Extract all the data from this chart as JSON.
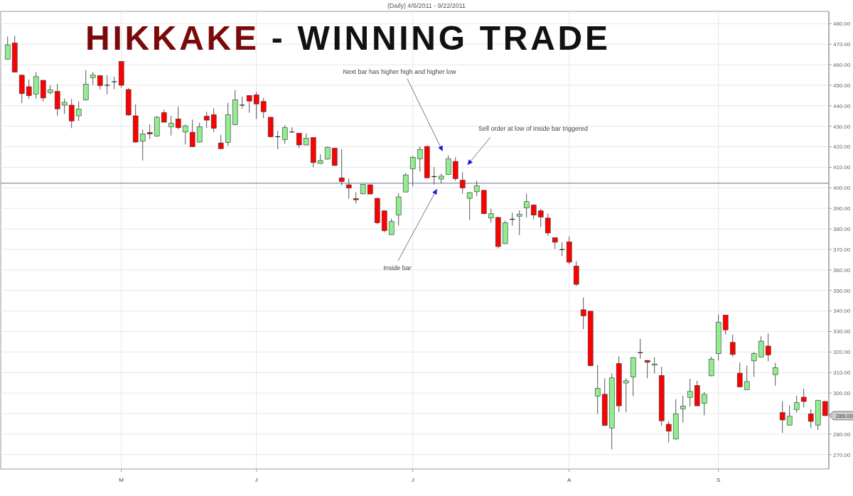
{
  "chart_data": {
    "type": "candlestick",
    "title": "HIKKAKE - WINNING TRADE",
    "subtitle": "(Daily) 4/6/2011 - 9/22/2011",
    "categories": [
      null,
      null,
      null,
      null,
      null,
      null,
      null,
      null,
      null,
      null,
      null,
      null,
      null,
      null,
      null,
      null,
      "M",
      null,
      null,
      null,
      null,
      null,
      null,
      null,
      null,
      null,
      null,
      null,
      null,
      null,
      null,
      null,
      null,
      null,
      null,
      "J",
      null,
      null,
      null,
      null,
      null,
      null,
      null,
      null,
      null,
      null,
      null,
      null,
      null,
      null,
      null,
      null,
      null,
      null,
      null,
      null,
      null,
      "J",
      null,
      null,
      null,
      null,
      null,
      null,
      null,
      null,
      null,
      null,
      null,
      null,
      null,
      null,
      null,
      null,
      null,
      null,
      null,
      null,
      null,
      "A",
      null,
      null,
      null,
      null,
      null,
      null,
      null,
      null,
      null,
      null,
      null,
      null,
      null,
      null,
      null,
      null,
      null,
      null,
      null,
      null,
      "S",
      null,
      null,
      null,
      null,
      null,
      null,
      null,
      null,
      null,
      null,
      null,
      null,
      null,
      null,
      null
    ],
    "ohlc": [
      [
        462.7,
        473.7,
        462.5,
        469.7
      ],
      [
        470.6,
        474.1,
        456.2,
        456.4
      ],
      [
        454.9,
        455.2,
        441.3,
        445.9
      ],
      [
        449.3,
        452.8,
        443.3,
        444.9
      ],
      [
        445.6,
        456.4,
        443.3,
        454.2
      ],
      [
        452.4,
        452.6,
        442.1,
        443.8
      ],
      [
        446.4,
        450.0,
        445.6,
        447.7
      ],
      [
        447.0,
        450.7,
        435.1,
        438.5
      ],
      [
        440.3,
        443.5,
        436.0,
        441.7
      ],
      [
        440.3,
        443.3,
        429.1,
        432.6
      ],
      [
        435.1,
        442.1,
        432.6,
        438.4
      ],
      [
        442.8,
        457.4,
        442.6,
        450.5
      ],
      [
        453.7,
        456.5,
        450.2,
        455.0
      ],
      [
        454.7,
        454.9,
        447.9,
        449.8
      ],
      [
        450.0,
        454.9,
        445.6,
        450.0
      ],
      [
        451.7,
        454.2,
        448.1,
        451.7
      ],
      [
        461.6,
        461.8,
        448.8,
        450.0
      ],
      [
        447.9,
        448.7,
        435.1,
        435.5
      ],
      [
        435.1,
        440.7,
        422.0,
        422.3
      ],
      [
        422.7,
        428.4,
        413.3,
        426.3
      ],
      [
        427.0,
        430.9,
        423.7,
        426.3
      ],
      [
        425.3,
        435.1,
        424.9,
        434.4
      ],
      [
        436.7,
        438.1,
        431.8,
        432.0
      ],
      [
        429.8,
        435.1,
        425.5,
        431.4
      ],
      [
        433.6,
        439.5,
        428.4,
        429.3
      ],
      [
        427.2,
        430.9,
        421.2,
        430.2
      ],
      [
        427.1,
        433.3,
        419.9,
        420.1
      ],
      [
        422.3,
        431.7,
        422.1,
        429.7
      ],
      [
        434.9,
        437.1,
        429.2,
        433.0
      ],
      [
        435.7,
        438.8,
        427.2,
        429.0
      ],
      [
        421.9,
        425.8,
        418.9,
        419.1
      ],
      [
        422.1,
        441.4,
        420.5,
        435.6
      ],
      [
        430.8,
        447.7,
        430.6,
        442.9
      ],
      [
        440.3,
        444.4,
        438.6,
        440.3
      ],
      [
        445.0,
        445.2,
        436.6,
        442.3
      ],
      [
        445.3,
        446.7,
        433.6,
        440.9
      ],
      [
        442.1,
        443.8,
        434.0,
        437.1
      ],
      [
        434.4,
        434.6,
        424.7,
        424.9
      ],
      [
        424.9,
        427.8,
        418.8,
        424.9
      ],
      [
        423.5,
        430.5,
        421.4,
        429.3
      ],
      [
        427.2,
        429.5,
        427.0,
        427.2
      ],
      [
        426.6,
        426.8,
        419.4,
        420.9
      ],
      [
        420.9,
        426.6,
        420.7,
        424.2
      ],
      [
        424.5,
        424.7,
        410.1,
        412.3
      ],
      [
        411.9,
        416.3,
        411.7,
        413.3
      ],
      [
        414.0,
        420.2,
        413.8,
        419.8
      ],
      [
        419.3,
        419.5,
        410.7,
        410.9
      ],
      [
        404.9,
        418.8,
        401.2,
        403.1
      ],
      [
        401.5,
        404.5,
        394.7,
        399.9
      ],
      [
        394.8,
        397.9,
        392.3,
        394.2
      ],
      [
        397.1,
        401.9,
        396.9,
        401.7
      ],
      [
        401.5,
        401.7,
        396.8,
        397.0
      ],
      [
        394.9,
        395.1,
        382.3,
        383.0
      ],
      [
        388.8,
        389.0,
        378.4,
        379.1
      ],
      [
        377.2,
        385.0,
        377.0,
        383.6
      ],
      [
        386.8,
        397.4,
        381.6,
        395.6
      ],
      [
        398.0,
        407.2,
        397.8,
        406.3
      ],
      [
        409.3,
        415.6,
        400.8,
        414.9
      ],
      [
        414.1,
        420.2,
        408.0,
        418.7
      ],
      [
        420.2,
        420.4,
        404.7,
        404.9
      ],
      [
        405.5,
        410.1,
        401.6,
        405.5
      ],
      [
        404.3,
        406.9,
        402.2,
        405.7
      ],
      [
        406.5,
        415.8,
        406.3,
        414.1
      ],
      [
        412.9,
        414.9,
        403.4,
        404.5
      ],
      [
        403.7,
        407.7,
        397.2,
        400.0
      ],
      [
        394.9,
        397.9,
        384.4,
        397.7
      ],
      [
        398.1,
        403.4,
        396.0,
        401.0
      ],
      [
        398.8,
        399.0,
        387.2,
        387.4
      ],
      [
        385.3,
        389.8,
        383.0,
        387.4
      ],
      [
        385.6,
        385.8,
        370.5,
        371.4
      ],
      [
        372.8,
        384.0,
        372.6,
        383.0
      ],
      [
        384.7,
        387.9,
        381.6,
        384.7
      ],
      [
        386.2,
        389.1,
        377.0,
        387.1
      ],
      [
        390.2,
        397.2,
        385.6,
        393.3
      ],
      [
        391.7,
        391.9,
        384.8,
        386.7
      ],
      [
        388.8,
        389.8,
        380.9,
        385.8
      ],
      [
        385.3,
        387.4,
        376.6,
        378.0
      ],
      [
        375.7,
        375.9,
        370.2,
        373.5
      ],
      [
        369.9,
        373.5,
        366.7,
        369.9
      ],
      [
        373.7,
        376.3,
        362.9,
        363.8
      ],
      [
        361.9,
        364.2,
        352.2,
        353.0
      ],
      [
        340.6,
        346.6,
        331.1,
        337.6
      ],
      [
        339.9,
        340.1,
        313.1,
        313.3
      ],
      [
        298.5,
        313.6,
        289.8,
        302.3
      ],
      [
        299.4,
        307.2,
        284.0,
        284.2
      ],
      [
        283.0,
        309.5,
        272.6,
        307.4
      ],
      [
        314.4,
        317.9,
        290.7,
        293.8
      ],
      [
        304.9,
        307.2,
        290.7,
        306.0
      ],
      [
        307.8,
        317.5,
        298.5,
        317.3
      ],
      [
        319.7,
        326.4,
        316.7,
        319.7
      ],
      [
        315.9,
        316.1,
        307.2,
        315.0
      ],
      [
        313.6,
        317.4,
        309.5,
        314.2
      ],
      [
        308.6,
        312.8,
        284.0,
        286.5
      ],
      [
        284.8,
        286.3,
        276.0,
        281.4
      ],
      [
        277.6,
        297.0,
        277.4,
        289.8
      ],
      [
        292.3,
        298.7,
        285.7,
        293.7
      ],
      [
        297.9,
        306.9,
        293.5,
        300.8
      ],
      [
        303.7,
        306.0,
        293.6,
        293.8
      ],
      [
        295.0,
        300.5,
        289.2,
        299.4
      ],
      [
        308.4,
        317.7,
        308.2,
        316.5
      ],
      [
        319.2,
        338.3,
        315.9,
        334.5
      ],
      [
        338.0,
        338.2,
        328.5,
        330.8
      ],
      [
        324.7,
        328.4,
        317.7,
        318.8
      ],
      [
        309.7,
        314.9,
        302.8,
        303.0
      ],
      [
        301.7,
        313.4,
        301.5,
        305.6
      ],
      [
        315.7,
        320.1,
        307.9,
        319.2
      ],
      [
        317.6,
        327.7,
        317.4,
        325.3
      ],
      [
        322.9,
        329.1,
        315.5,
        318.6
      ],
      [
        309.0,
        314.7,
        303.6,
        312.4
      ],
      [
        290.5,
        296.0,
        280.6,
        286.9
      ],
      [
        284.4,
        294.0,
        284.2,
        288.7
      ],
      [
        292.0,
        298.8,
        290.5,
        295.3
      ],
      [
        298.0,
        302.1,
        293.0,
        295.9
      ],
      [
        289.9,
        292.2,
        282.9,
        286.2
      ],
      [
        284.4,
        296.7,
        282.0,
        296.5
      ],
      [
        295.9,
        296.1,
        288.8,
        289.0
      ]
    ],
    "ylim": [
      263,
      486
    ],
    "yticks": [
      {
        "value": 270,
        "label": "270.00"
      },
      {
        "value": 280,
        "label": "280.00"
      },
      {
        "value": 290,
        "label": null
      },
      {
        "value": 300,
        "label": "300.00"
      },
      {
        "value": 310,
        "label": "310.00"
      },
      {
        "value": 320,
        "label": "320.00"
      },
      {
        "value": 330,
        "label": "330.00"
      },
      {
        "value": 340,
        "label": "340.00"
      },
      {
        "value": 350,
        "label": "350.00"
      },
      {
        "value": 360,
        "label": "360.00"
      },
      {
        "value": 370,
        "label": "370.00"
      },
      {
        "value": 380,
        "label": "380.00"
      },
      {
        "value": 390,
        "label": "390.00"
      },
      {
        "value": 400,
        "label": "400.00"
      },
      {
        "value": 410,
        "label": "410.00"
      },
      {
        "value": 420,
        "label": "420.00"
      },
      {
        "value": 430,
        "label": "430.00"
      },
      {
        "value": 440,
        "label": "440.00"
      },
      {
        "value": 450,
        "label": "450.00"
      },
      {
        "value": 460,
        "label": "460.00"
      },
      {
        "value": 470,
        "label": "470.00"
      },
      {
        "value": 480,
        "label": "480.00"
      }
    ],
    "grid": true,
    "ref_lines": [
      {
        "axis": "y",
        "value": 402.3,
        "color": "#9a9cb0"
      }
    ],
    "annotations": [
      "Next bar has higher high and higher low",
      "Sell order at low of inside bar triggered",
      "Inside bar",
      "289.00"
    ]
  }
}
